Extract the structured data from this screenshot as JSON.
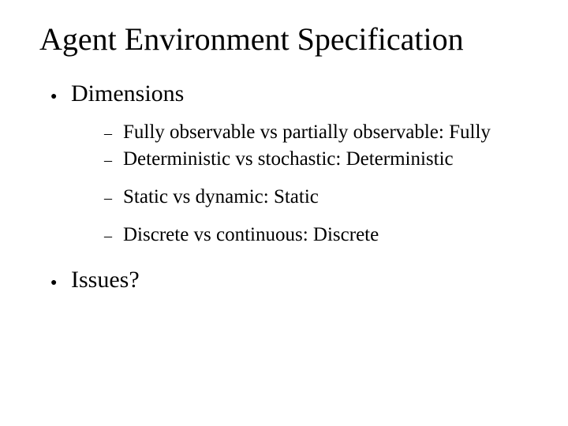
{
  "background_color": "#ffffff",
  "text_color": "#000000",
  "font_family": "Times New Roman",
  "title": {
    "text": "Agent Environment Specification",
    "fontsize": 40,
    "weight": "normal"
  },
  "bullets": [
    {
      "marker": "●",
      "label": "Dimensions",
      "fontsize": 30,
      "sub": [
        {
          "marker": "–",
          "label": "Fully observable vs partially observable: Fully",
          "fontsize": 25,
          "gap_before": false
        },
        {
          "marker": "–",
          "label": "Deterministic vs stochastic: Deterministic",
          "fontsize": 25,
          "gap_before": false
        },
        {
          "marker": "–",
          "label": "Static vs dynamic: Static",
          "fontsize": 25,
          "gap_before": true
        },
        {
          "marker": "–",
          "label": "Discrete vs continuous: Discrete",
          "fontsize": 25,
          "gap_before": true
        }
      ]
    },
    {
      "marker": "●",
      "label": "Issues?",
      "fontsize": 30,
      "sub": []
    }
  ]
}
